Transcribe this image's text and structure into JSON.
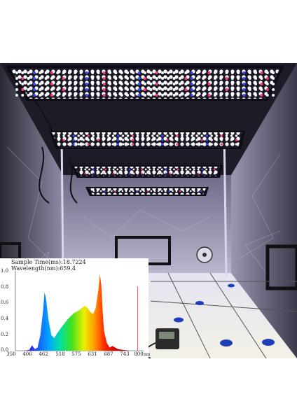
{
  "photo": {
    "subject": "grow tent with LED grow light bars, spectrum readout inset",
    "led_colors": [
      "#ffffff",
      "#3a4bff",
      "#ff3b7a"
    ],
    "panel_count": 4
  },
  "spectrum": {
    "header_line1": "Sample Time(ms):18.7224",
    "header_line2": "Wavelength(nm):659.4",
    "x_ticks": [
      "350",
      "406",
      "462",
      "518",
      "575",
      "631",
      "687",
      "743",
      "800"
    ],
    "x_unit": "nm",
    "y_ticks": [
      "1.0",
      "0.8",
      "0.6",
      "0.4",
      "0.2",
      "0.0"
    ]
  },
  "chart_data": {
    "type": "area",
    "xlim": [
      350,
      800
    ],
    "ylim": [
      0,
      1.0
    ],
    "x": [
      350,
      380,
      400,
      410,
      420,
      430,
      440,
      450,
      455,
      460,
      470,
      480,
      490,
      500,
      520,
      540,
      560,
      580,
      600,
      610,
      620,
      630,
      640,
      650,
      655,
      660,
      665,
      670,
      680,
      690,
      700,
      720,
      740,
      760,
      780,
      800
    ],
    "y": [
      0.0,
      0.0,
      0.01,
      0.07,
      0.02,
      0.04,
      0.2,
      0.52,
      0.75,
      0.68,
      0.38,
      0.2,
      0.16,
      0.22,
      0.32,
      0.41,
      0.48,
      0.52,
      0.58,
      0.55,
      0.5,
      0.47,
      0.55,
      0.8,
      0.98,
      0.85,
      0.5,
      0.25,
      0.1,
      0.04,
      0.06,
      0.02,
      0.01,
      0.0,
      0.0,
      0.0
    ],
    "marker_wavelength": 659.4
  }
}
